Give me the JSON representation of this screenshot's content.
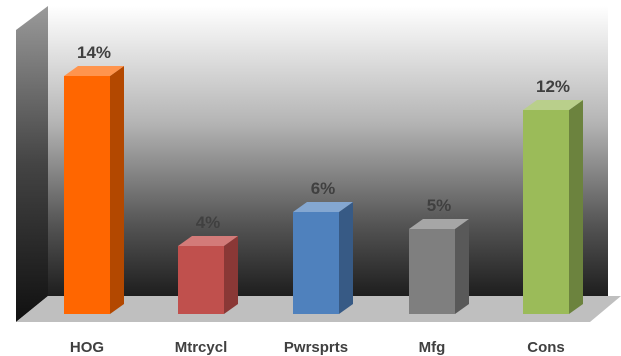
{
  "chart_data": {
    "type": "bar",
    "style": "3d-column",
    "categories": [
      "HOG",
      "Mtrcycl",
      "Pwrsprts",
      "Mfg",
      "Cons"
    ],
    "values": [
      14,
      4,
      6,
      5,
      12
    ],
    "data_labels": [
      "14%",
      "4%",
      "6%",
      "5%",
      "12%"
    ],
    "value_unit": "%",
    "ylim": [
      0,
      16
    ],
    "grid": false,
    "legend": "none",
    "title": "",
    "xlabel": "",
    "ylabel": ""
  },
  "colors": {
    "bars": [
      "#FF6600",
      "#C0504D",
      "#4F81BD",
      "#7F7F7F",
      "#9BBB59"
    ],
    "bar_sides": [
      "#B34800",
      "#8A3836",
      "#375A85",
      "#595959",
      "#6C833E"
    ],
    "bar_tops": [
      "#FF944D",
      "#D37B79",
      "#84A7D1",
      "#A6A6A6",
      "#B9CF8B"
    ],
    "wall_top": "#ffffff",
    "wall_bottom": "#1a1a1a",
    "floor": "#bfbfbf",
    "label_text": "#404040"
  }
}
